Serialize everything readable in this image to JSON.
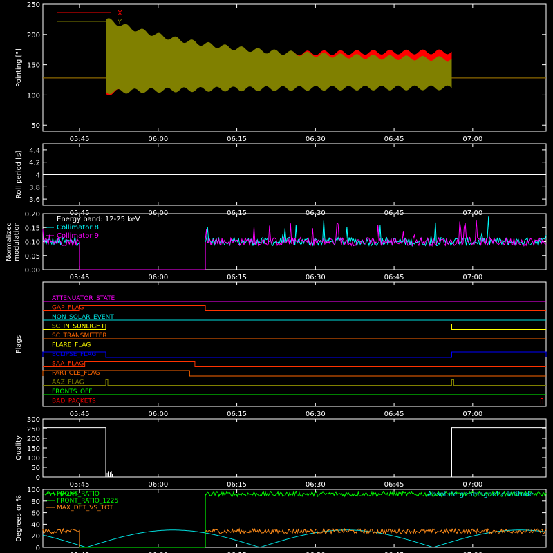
{
  "chart_data": [
    {
      "type": "line",
      "ylabel": "Pointing [\"]",
      "ylim": [
        40,
        250
      ],
      "yticks": [
        50,
        100,
        150,
        200,
        250
      ],
      "legend_placement": "top-left",
      "series": [
        {
          "name": "X",
          "color": "#ff0000",
          "baseline": 128,
          "start": "05:50",
          "end": "06:56",
          "start_min": 102,
          "start_max": 155,
          "end_min": 135,
          "end_max": 172,
          "after_end": 128
        },
        {
          "name": "Y",
          "color": "#808000",
          "baseline": 128,
          "start": "05:50",
          "end": "06:56",
          "start_min": 105,
          "start_max": 225,
          "end_min": 112,
          "end_max": 157,
          "after_end": 128
        }
      ]
    },
    {
      "type": "line",
      "ylabel": "Roll period [s]",
      "ylim": [
        3.5,
        4.5
      ],
      "yticks": [
        3.6,
        3.8,
        4.0,
        4.2,
        4.4
      ],
      "series": [
        {
          "name": "",
          "color": "#ffffff",
          "value": 4.0
        }
      ]
    },
    {
      "type": "line",
      "ylabel": "Normalized modulation",
      "ylim": [
        0,
        0.2
      ],
      "yticks": [
        "0.00",
        "0.05",
        "0.10",
        "0.15",
        "0.20"
      ],
      "annotation": "Energy band: 12-25 keV",
      "gaps": [
        [
          "05:45",
          "06:09"
        ]
      ],
      "series": [
        {
          "name": "Collimator 8",
          "color": "#00ffff",
          "mean": 0.1
        },
        {
          "name": "Collimator 9",
          "color": "#ff00ff",
          "mean": 0.1
        }
      ]
    },
    {
      "type": "line",
      "ylabel": "Flags",
      "flags": [
        {
          "name": "ATTENUATOR_STATE",
          "color": "#ff00ff",
          "segments": []
        },
        {
          "name": "GAP_FLAG",
          "color": "#ff3300",
          "segments": [
            [
              "05:45",
              "06:09"
            ]
          ]
        },
        {
          "name": "NON_SOLAR_EVENT",
          "color": "#00e0e0",
          "segments": []
        },
        {
          "name": "SC_IN_SUNLIGHT",
          "color": "#ffff00",
          "segments": [
            [
              "05:50",
              "06:56"
            ]
          ]
        },
        {
          "name": "SC_TRANSMITTER",
          "color": "#ff6600",
          "segments": []
        },
        {
          "name": "FLARE_FLAG",
          "color": "#ffff00",
          "segments": []
        },
        {
          "name": "ECLIPSE_FLAG",
          "color": "#0000ff",
          "segments": [
            [
              "05:38",
              "05:50"
            ],
            [
              "06:56",
              "07:14"
            ]
          ]
        },
        {
          "name": "SAA_FLAG",
          "color": "#ff3300",
          "segments": [
            [
              "05:46",
              "06:07"
            ]
          ]
        },
        {
          "name": "PARTICLE_FLAG",
          "color": "#ff6600",
          "segments": [
            [
              "05:38",
              "06:06"
            ]
          ]
        },
        {
          "name": "AAZ_FLAG",
          "color": "#808000",
          "segments": [
            [
              "05:50",
              "05:50"
            ],
            [
              "06:56",
              "06:56"
            ]
          ]
        },
        {
          "name": "FRONTS_OFF",
          "color": "#00ff00",
          "segments": []
        },
        {
          "name": "BAD_PACKETS",
          "color": "#ff0000",
          "segments": [
            [
              "07:13",
              "07:13"
            ]
          ]
        }
      ]
    },
    {
      "type": "line",
      "ylabel": "Quality",
      "ylim": [
        0,
        300
      ],
      "yticks": [
        0,
        50,
        100,
        150,
        200,
        250,
        300
      ],
      "series": [
        {
          "name": "",
          "color": "#ffffff",
          "value": 255,
          "segments_high": [
            [
              "05:38",
              "05:50"
            ],
            [
              "06:56",
              "07:14"
            ]
          ]
        }
      ]
    },
    {
      "type": "line",
      "ylabel": "Degrees or %",
      "ylim": [
        0,
        100
      ],
      "yticks": [
        0,
        20,
        40,
        60,
        80,
        100
      ],
      "annotation": "Absolute geomagnetic latitude",
      "gaps": [
        [
          "05:45",
          "06:09"
        ]
      ],
      "series": [
        {
          "name": "FRONT_RATIO",
          "color": "#00ff00",
          "mean": 92
        },
        {
          "name": "FRONT_RATIO_1225",
          "color": "#00ff00",
          "mean": 92
        },
        {
          "name": "MAX_DET_VS_TOT",
          "color": "#ff8c1a",
          "mean": 28
        },
        {
          "name": "Absolute geomagnetic latitude",
          "color": "#00e0e0"
        }
      ]
    }
  ],
  "x_axis": {
    "range": [
      "05:38",
      "07:14"
    ],
    "tick_labels": [
      "05:45",
      "06:00",
      "06:15",
      "06:30",
      "06:45",
      "07:00"
    ]
  }
}
